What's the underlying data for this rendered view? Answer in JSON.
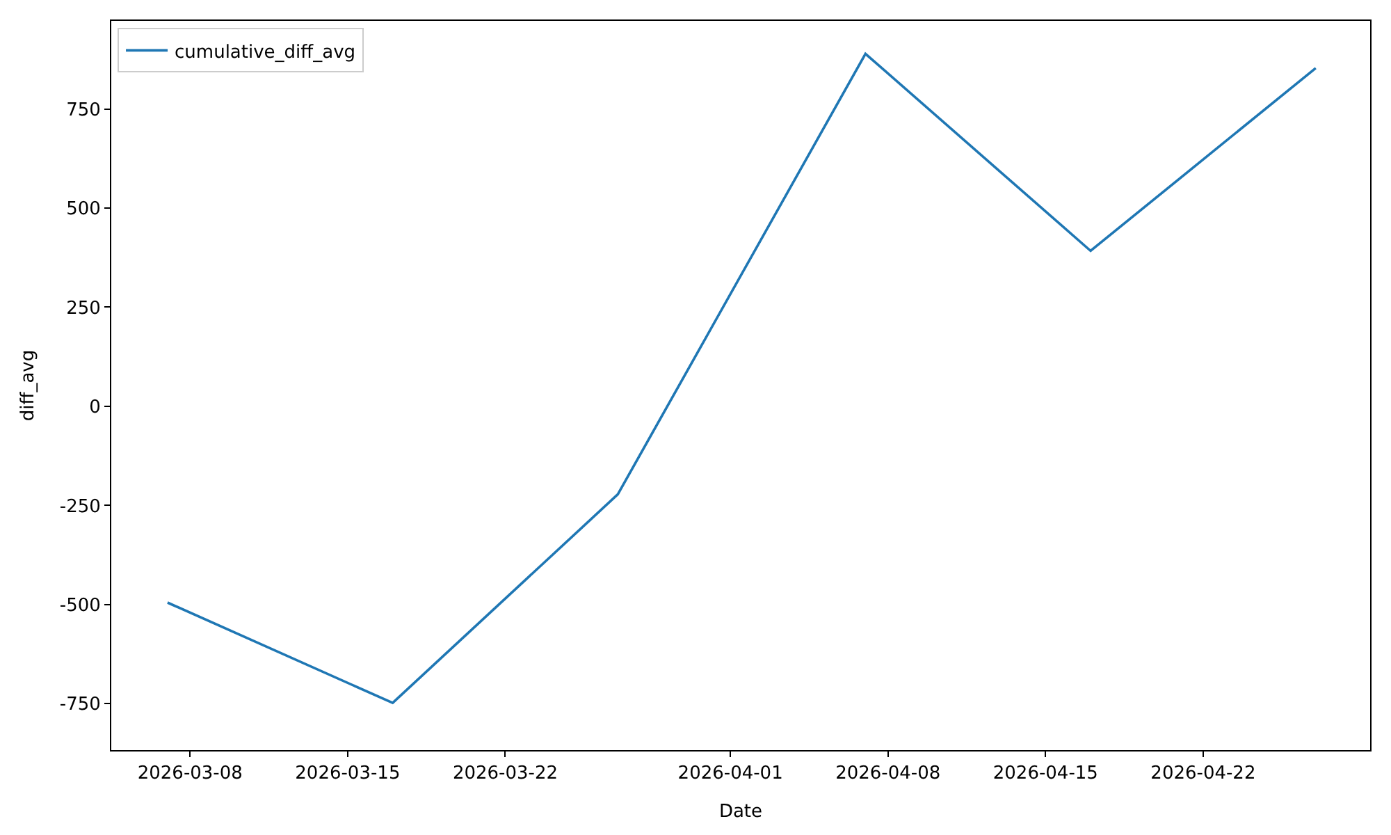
{
  "chart_data": {
    "type": "line",
    "xlabel": "Date",
    "ylabel": "diff_avg",
    "x": [
      "2026-03-07",
      "2026-03-17",
      "2026-03-27",
      "2026-04-07",
      "2026-04-17",
      "2026-04-27"
    ],
    "series": [
      {
        "name": "cumulative_diff_avg",
        "color": "#1f77b4",
        "values": [
          -495,
          -748,
          -222,
          889,
          392,
          853
        ]
      }
    ],
    "xlim": [
      "2026-03-04T12:00",
      "2026-04-29T10:00"
    ],
    "xticks": [
      "2026-03-08",
      "2026-03-15",
      "2026-03-22",
      "2026-04-01",
      "2026-04-08",
      "2026-04-15",
      "2026-04-22"
    ],
    "ylim": [
      -867,
      972
    ],
    "yticks": [
      -750,
      -500,
      -250,
      0,
      250,
      500,
      750
    ],
    "legend": "top left",
    "marker": "none",
    "line_style": "solid"
  }
}
